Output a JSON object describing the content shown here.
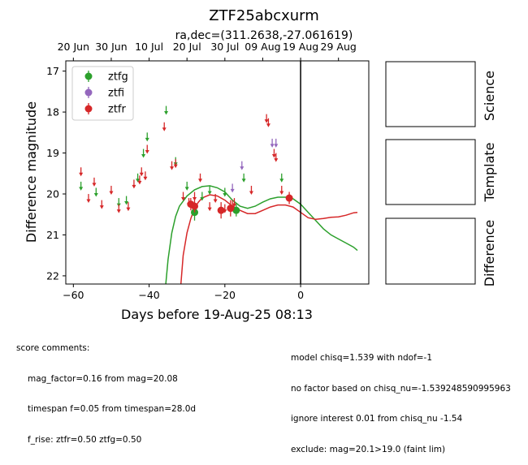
{
  "chart_data": {
    "type": "scatter",
    "title": "ZTF25abcxurm",
    "subtitle": "ra,dec=(311.2638,-27.061619)",
    "xlabel": "Days before 19-Aug-25 08:13",
    "ylabel": "Difference magnitude",
    "xlim": [
      -62,
      18
    ],
    "ylim": [
      22.2,
      16.75
    ],
    "y_inverted": true,
    "x_ticks": [
      -60,
      -40,
      -20,
      0
    ],
    "y_ticks": [
      17,
      18,
      19,
      20,
      21,
      22
    ],
    "top_axis_ticks": [
      {
        "label": "20 Jun",
        "x": -60
      },
      {
        "label": "30 Jun",
        "x": -50
      },
      {
        "label": "10 Jul",
        "x": -40
      },
      {
        "label": "20 Jul",
        "x": -30
      },
      {
        "label": "30 Jul",
        "x": -20
      },
      {
        "label": "09 Aug",
        "x": -10
      },
      {
        "label": "19 Aug",
        "x": 0
      },
      {
        "label": "29 Aug",
        "x": 10
      }
    ],
    "vline_x": 0,
    "legend_position": "top-left",
    "legend": [
      {
        "name": "ztfg",
        "color": "#2ca02c"
      },
      {
        "name": "ztfi",
        "color": "#9467bd"
      },
      {
        "name": "ztfr",
        "color": "#d62728"
      }
    ],
    "upper_limits": {
      "ztfg": [
        [
          -58,
          19.8
        ],
        [
          -54,
          19.95
        ],
        [
          -48,
          20.2
        ],
        [
          -46,
          20.15
        ],
        [
          -43,
          19.6
        ],
        [
          -41.5,
          19.0
        ],
        [
          -40.5,
          18.6
        ],
        [
          -35.5,
          17.95
        ],
        [
          -33,
          19.2
        ],
        [
          -30,
          19.8
        ],
        [
          -26,
          20.05
        ],
        [
          -24,
          19.9
        ],
        [
          -20,
          19.95
        ],
        [
          -15,
          19.6
        ],
        [
          -5,
          19.6
        ]
      ],
      "ztfi": [
        [
          -18,
          19.85
        ],
        [
          -15.5,
          19.3
        ],
        [
          -7.5,
          18.75
        ],
        [
          -6.5,
          18.75
        ]
      ],
      "ztfr": [
        [
          -58,
          19.45
        ],
        [
          -56,
          20.1
        ],
        [
          -54.5,
          19.7
        ],
        [
          -52.5,
          20.25
        ],
        [
          -50,
          19.9
        ],
        [
          -48,
          20.35
        ],
        [
          -45.5,
          20.3
        ],
        [
          -44,
          19.75
        ],
        [
          -42.5,
          19.65
        ],
        [
          -42,
          19.45
        ],
        [
          -41,
          19.55
        ],
        [
          -40.5,
          18.9
        ],
        [
          -36,
          18.35
        ],
        [
          -34,
          19.3
        ],
        [
          -33,
          19.25
        ],
        [
          -31,
          20.05
        ],
        [
          -29.5,
          20.2
        ],
        [
          -28,
          20.05
        ],
        [
          -26.5,
          19.6
        ],
        [
          -24,
          20.3
        ],
        [
          -22.5,
          20.1
        ],
        [
          -20,
          20.35
        ],
        [
          -18,
          20.25
        ],
        [
          -17.5,
          20.2
        ],
        [
          -13,
          19.9
        ],
        [
          -9,
          18.15
        ],
        [
          -8.5,
          18.25
        ],
        [
          -7,
          19.0
        ],
        [
          -6.5,
          19.1
        ],
        [
          -5,
          19.9
        ]
      ]
    },
    "detections": {
      "ztfg": [
        [
          -28,
          20.45,
          0.2
        ],
        [
          -17,
          20.4,
          0.15
        ]
      ],
      "ztfr": [
        [
          -29,
          20.25,
          0.15
        ],
        [
          -28,
          20.3,
          0.15
        ],
        [
          -21,
          20.4,
          0.2
        ],
        [
          -18.5,
          20.35,
          0.2
        ],
        [
          -3,
          20.1,
          0.15
        ]
      ]
    },
    "models": {
      "ztfg": [
        [
          -35.6,
          22.2
        ],
        [
          -35,
          21.6
        ],
        [
          -34,
          20.95
        ],
        [
          -33,
          20.55
        ],
        [
          -32,
          20.3
        ],
        [
          -30,
          20.05
        ],
        [
          -28,
          19.9
        ],
        [
          -26,
          19.82
        ],
        [
          -24,
          19.8
        ],
        [
          -22,
          19.85
        ],
        [
          -20,
          19.95
        ],
        [
          -18,
          20.15
        ],
        [
          -16,
          20.3
        ],
        [
          -14,
          20.35
        ],
        [
          -12,
          20.3
        ],
        [
          -10,
          20.2
        ],
        [
          -8,
          20.12
        ],
        [
          -6,
          20.08
        ],
        [
          -4,
          20.08
        ],
        [
          -2,
          20.12
        ],
        [
          0,
          20.25
        ],
        [
          2,
          20.45
        ],
        [
          4,
          20.65
        ],
        [
          6,
          20.85
        ],
        [
          8,
          21.0
        ],
        [
          10,
          21.1
        ],
        [
          12,
          21.2
        ],
        [
          14,
          21.3
        ],
        [
          15,
          21.38
        ]
      ],
      "ztfr": [
        [
          -31.6,
          22.2
        ],
        [
          -31,
          21.5
        ],
        [
          -30,
          20.95
        ],
        [
          -29,
          20.6
        ],
        [
          -28,
          20.35
        ],
        [
          -27,
          20.2
        ],
        [
          -26,
          20.1
        ],
        [
          -24,
          20.02
        ],
        [
          -22,
          20.05
        ],
        [
          -20,
          20.15
        ],
        [
          -18,
          20.3
        ],
        [
          -16,
          20.4
        ],
        [
          -14,
          20.48
        ],
        [
          -12,
          20.48
        ],
        [
          -10,
          20.4
        ],
        [
          -8,
          20.32
        ],
        [
          -6,
          20.27
        ],
        [
          -4,
          20.27
        ],
        [
          -2,
          20.32
        ],
        [
          0,
          20.45
        ],
        [
          2,
          20.58
        ],
        [
          4,
          20.62
        ],
        [
          6,
          20.6
        ],
        [
          8,
          20.57
        ],
        [
          10,
          20.56
        ],
        [
          12,
          20.52
        ],
        [
          14,
          20.46
        ],
        [
          15,
          20.45
        ]
      ]
    },
    "side_panels": [
      "Science",
      "Template",
      "Difference"
    ]
  },
  "comments_left": {
    "heading": "score comments:",
    "lines": [
      "mag_factor=0.16 from mag=20.08",
      "timespan f=0.05 from timespan=28.0d",
      "f_rise: ztfr=0.50 ztfg=0.50"
    ]
  },
  "comments_right": {
    "lines": [
      "model chisq=1.539 with ndof=-1",
      "no factor based on chisq_nu=-1.539248590995963",
      "ignore interest 0.01 from chisq_nu -1.54",
      "exclude: mag=20.1>19.0 (faint lim)"
    ]
  },
  "colors": {
    "ztfg": "#2ca02c",
    "ztfi": "#9467bd",
    "ztfr": "#d62728"
  }
}
